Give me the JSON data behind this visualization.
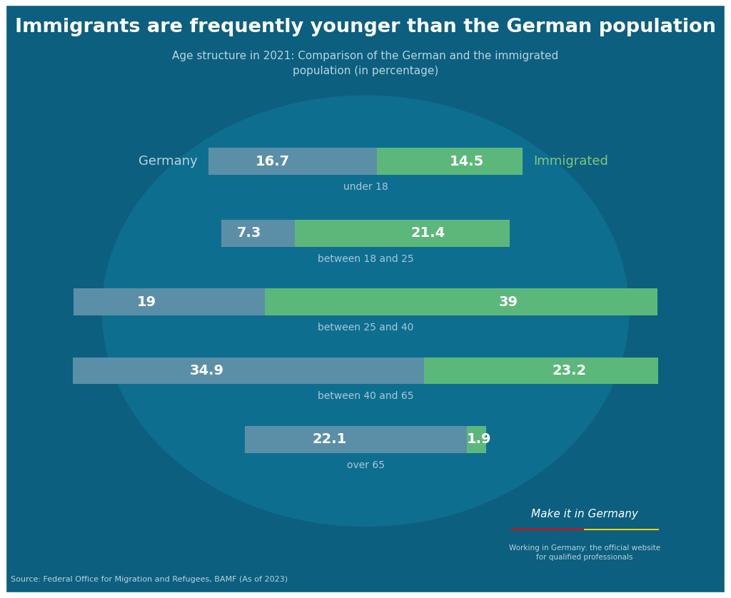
{
  "title": "Immigrants are frequently younger than the German population",
  "subtitle": "Age structure in 2021: Comparison of the German and the immigrated\npopulation (in percentage)",
  "categories": [
    "under 18",
    "between 18 and 25",
    "between 25 and 40",
    "between 40 and 65",
    "over 65"
  ],
  "germany_values": [
    16.7,
    7.3,
    19.0,
    34.9,
    22.1
  ],
  "immigrated_values": [
    14.5,
    21.4,
    39.0,
    23.2,
    1.9
  ],
  "germany_label": "Germany",
  "immigrated_label": "Immigrated",
  "germany_color": "#5b8fa8",
  "immigrated_color": "#5cb87a",
  "bg_color": "#0c5f7e",
  "circle_color": "#0e6e90",
  "text_color": "#ffffff",
  "label_color_subtitle": "#b8d4e0",
  "label_color_immigrated": "#7ec87e",
  "category_label_color": "#aac8d8",
  "source_text": "Source: Federal Office for Migration and Refugees, BAMF (As of 2023)",
  "make_it_text": "Working in Germany: the official website\nfor qualified professionals",
  "bar_height": 0.52,
  "fig_width": 10.24,
  "fig_height": 8.38,
  "border_color": "#ffffff",
  "border_width": 8
}
